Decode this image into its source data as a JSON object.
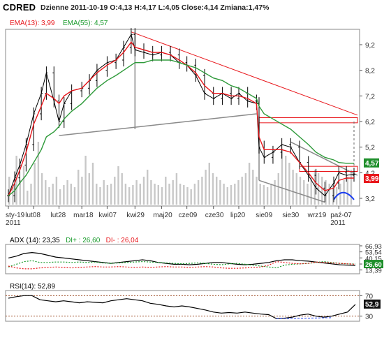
{
  "header": {
    "ticker": "CDRED",
    "info": "Dzienne 2011-10-19 O:4,13 H:4,17 L:4,05 Close:4,14 Zmiana:1,47%",
    "ema13": "EMA(13): 3,99",
    "ema55": "EMA(55): 4,57"
  },
  "adx": {
    "label": "ADX (14): 23,35",
    "di_plus": "DI+ : 26,60",
    "di_minus": "DI- : 26,04"
  },
  "rsi": {
    "label": "RSI(14): 52,89"
  },
  "colors": {
    "ema13": "#e8161b",
    "ema55": "#2e9a3a",
    "price": "#000000",
    "volume": "#c8c8c8",
    "trendline": "#8a8a8a",
    "resistance": "#e8161b"
  },
  "chart_data": [
    {
      "type": "candlestick",
      "title": "CDRED",
      "ylim": [
        2.9,
        9.8
      ],
      "y_ticks": [
        "9,2",
        "8,2",
        "7,2",
        "6,2",
        "5,2",
        "4,2",
        "3,2"
      ],
      "x_ticks": [
        "sty-19\n2011",
        "lut08",
        "lut28",
        "mar18",
        "kwi07",
        "kwi29",
        "maj20",
        "cze09",
        "cze30",
        "lip20",
        "sie09",
        "sie30",
        "wrz19",
        "paź-07\n2011"
      ],
      "close_points": [
        {
          "x": "2011-01-19",
          "y": 3.3
        },
        {
          "x": "2011-01-24",
          "y": 4.0
        },
        {
          "x": "2011-01-28",
          "y": 4.5
        },
        {
          "x": "2011-02-02",
          "y": 5.3
        },
        {
          "x": "2011-02-08",
          "y": 6.5
        },
        {
          "x": "2011-02-14",
          "y": 7.3
        },
        {
          "x": "2011-02-18",
          "y": 8.1
        },
        {
          "x": "2011-02-24",
          "y": 7.0
        },
        {
          "x": "2011-02-28",
          "y": 6.2
        },
        {
          "x": "2011-03-04",
          "y": 6.9
        },
        {
          "x": "2011-03-10",
          "y": 7.4
        },
        {
          "x": "2011-03-18",
          "y": 7.5
        },
        {
          "x": "2011-03-24",
          "y": 7.8
        },
        {
          "x": "2011-03-30",
          "y": 8.2
        },
        {
          "x": "2011-04-07",
          "y": 8.5
        },
        {
          "x": "2011-04-14",
          "y": 8.6
        },
        {
          "x": "2011-04-20",
          "y": 9.1
        },
        {
          "x": "2011-04-26",
          "y": 9.6
        },
        {
          "x": "2011-04-29",
          "y": 9.0
        },
        {
          "x": "2011-05-06",
          "y": 8.9
        },
        {
          "x": "2011-05-13",
          "y": 8.8
        },
        {
          "x": "2011-05-20",
          "y": 8.9
        },
        {
          "x": "2011-05-27",
          "y": 8.8
        },
        {
          "x": "2011-06-03",
          "y": 8.5
        },
        {
          "x": "2011-06-09",
          "y": 8.4
        },
        {
          "x": "2011-06-16",
          "y": 8.0
        },
        {
          "x": "2011-06-23",
          "y": 7.3
        },
        {
          "x": "2011-06-30",
          "y": 7.1
        },
        {
          "x": "2011-07-07",
          "y": 7.3
        },
        {
          "x": "2011-07-14",
          "y": 7.1
        },
        {
          "x": "2011-07-20",
          "y": 7.3
        },
        {
          "x": "2011-07-27",
          "y": 7.0
        },
        {
          "x": "2011-08-03",
          "y": 6.9
        },
        {
          "x": "2011-08-05",
          "y": 5.2
        },
        {
          "x": "2011-08-09",
          "y": 4.8
        },
        {
          "x": "2011-08-16",
          "y": 5.0
        },
        {
          "x": "2011-08-23",
          "y": 5.3
        },
        {
          "x": "2011-08-30",
          "y": 5.2
        },
        {
          "x": "2011-09-06",
          "y": 4.6
        },
        {
          "x": "2011-09-13",
          "y": 4.1
        },
        {
          "x": "2011-09-19",
          "y": 3.6
        },
        {
          "x": "2011-09-26",
          "y": 3.3
        },
        {
          "x": "2011-10-03",
          "y": 3.8
        },
        {
          "x": "2011-10-07",
          "y": 4.2
        },
        {
          "x": "2011-10-13",
          "y": 4.1
        },
        {
          "x": "2011-10-19",
          "y": 4.14
        }
      ],
      "series": [
        {
          "name": "EMA(13)",
          "values": [
            3.3,
            3.8,
            4.3,
            5.0,
            6.1,
            6.8,
            7.3,
            7.1,
            6.9,
            7.2,
            7.4,
            7.5,
            7.8,
            8.1,
            8.4,
            8.6,
            8.9,
            9.3,
            9.1,
            9.0,
            8.9,
            8.9,
            8.8,
            8.6,
            8.4,
            8.1,
            7.6,
            7.3,
            7.3,
            7.2,
            7.2,
            7.1,
            6.9,
            5.6,
            5.1,
            5.1,
            5.1,
            5.0,
            4.6,
            4.2,
            3.8,
            3.5,
            3.6,
            3.9,
            3.99,
            3.99
          ]
        },
        {
          "name": "EMA(55)",
          "values": [
            3.3,
            3.5,
            3.8,
            4.1,
            4.6,
            5.1,
            5.6,
            5.8,
            6.0,
            6.3,
            6.6,
            6.9,
            7.2,
            7.5,
            7.8,
            8.0,
            8.2,
            8.4,
            8.5,
            8.5,
            8.6,
            8.6,
            8.6,
            8.5,
            8.4,
            8.3,
            8.1,
            7.9,
            7.8,
            7.6,
            7.5,
            7.3,
            7.1,
            6.8,
            6.5,
            6.3,
            6.1,
            5.9,
            5.6,
            5.3,
            5.0,
            4.8,
            4.7,
            4.6,
            4.57,
            4.57
          ]
        }
      ],
      "annotations": [
        "3,99",
        "4,57"
      ]
    },
    {
      "type": "line",
      "title": "ADX (14): 23,35",
      "y_ticks": [
        "66,93",
        "53,54",
        "40,15",
        "26,60",
        "13,39"
      ],
      "series": [
        {
          "name": "ADX",
          "values": [
            40,
            44,
            50,
            52,
            50,
            46,
            42,
            40,
            38,
            36,
            34,
            32,
            30,
            28,
            30,
            32,
            34,
            36,
            34,
            30,
            28,
            26,
            26,
            25,
            26,
            28,
            30,
            30,
            28,
            26,
            25,
            26,
            28,
            30,
            34,
            36,
            36,
            34,
            33,
            31,
            29,
            27,
            25,
            24,
            23.35
          ]
        },
        {
          "name": "DI+",
          "values": [
            20,
            26,
            32,
            34,
            30,
            30,
            31,
            31,
            30,
            31,
            30,
            31,
            29,
            28,
            29,
            30,
            31,
            32,
            31,
            30,
            29,
            28,
            27,
            28,
            29,
            28,
            26,
            25,
            27,
            28,
            26,
            24,
            22,
            20,
            18,
            24,
            26,
            27,
            28,
            30,
            32,
            30,
            28,
            27,
            26.6
          ]
        },
        {
          "name": "DI-",
          "values": [
            22,
            18,
            16,
            16,
            18,
            19,
            20,
            19,
            18,
            19,
            20,
            21,
            20,
            20,
            21,
            20,
            19,
            20,
            19,
            20,
            21,
            20,
            20,
            19,
            20,
            21,
            20,
            18,
            17,
            17,
            18,
            19,
            20,
            24,
            32,
            30,
            28,
            27,
            28,
            31,
            30,
            29,
            28,
            27,
            26.04
          ]
        }
      ]
    },
    {
      "type": "line",
      "title": "RSI(14): 52,89",
      "y_ticks": [
        "70",
        "30"
      ],
      "series": [
        {
          "name": "RSI(14)",
          "values": [
            65,
            68,
            70,
            70,
            62,
            60,
            58,
            60,
            58,
            56,
            58,
            57,
            56,
            60,
            62,
            64,
            62,
            60,
            55,
            53,
            50,
            48,
            50,
            48,
            45,
            42,
            38,
            36,
            37,
            36,
            38,
            36,
            34,
            33,
            25,
            26,
            28,
            32,
            34,
            30,
            28,
            30,
            34,
            38,
            52.89
          ]
        }
      ],
      "annotations": [
        "52,9"
      ]
    }
  ]
}
